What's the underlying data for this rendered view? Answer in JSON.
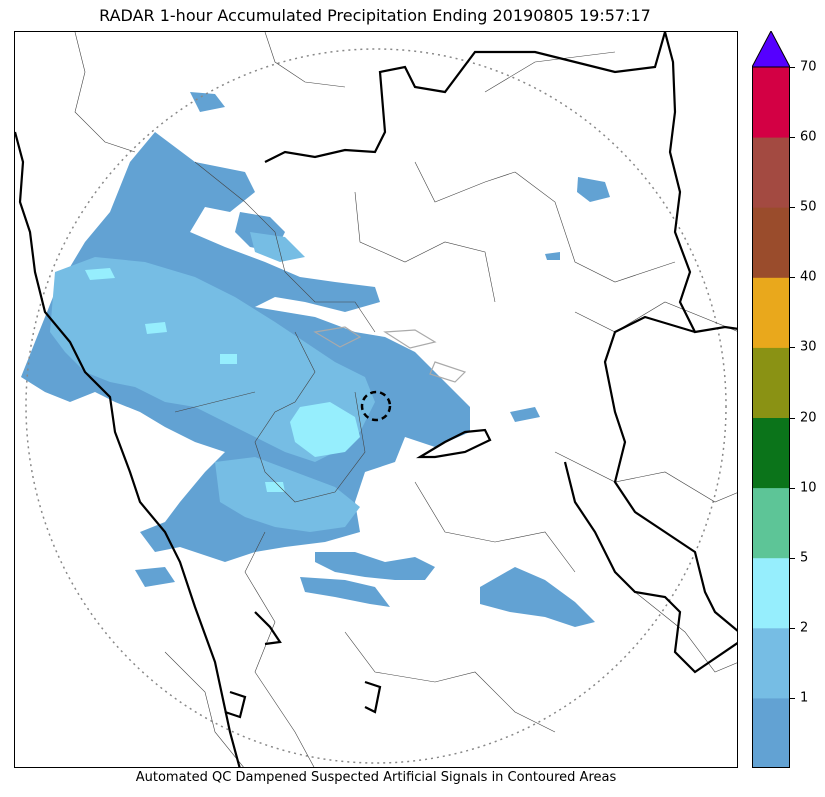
{
  "title": "RADAR 1-hour Accumulated Precipitation Ending 20190805 19:57:17",
  "footer": "Automated QC Dampened Suspected Artificial Signals in Contoured Areas",
  "colorbar": {
    "ticks": [
      "1",
      "2",
      "5",
      "10",
      "20",
      "30",
      "40",
      "50",
      "60",
      "70"
    ],
    "bands": [
      {
        "color": "#62a2d3"
      },
      {
        "color": "#76bde4"
      },
      {
        "color": "#96eefd"
      },
      {
        "color": "#5dc597"
      },
      {
        "color": "#0b741a"
      },
      {
        "color": "#8a9214"
      },
      {
        "color": "#e9a81c"
      },
      {
        "color": "#9a4c2c"
      },
      {
        "color": "#a34a41"
      },
      {
        "color": "#d30044"
      }
    ],
    "extend_color": "#5500ff"
  },
  "colors": {
    "precip_light": "#62a2d3",
    "precip_mid": "#76bde4",
    "precip_heavy": "#96eefd",
    "borders_major": "#000000",
    "borders_minor": "#444444",
    "range_ring": "#888888"
  }
}
